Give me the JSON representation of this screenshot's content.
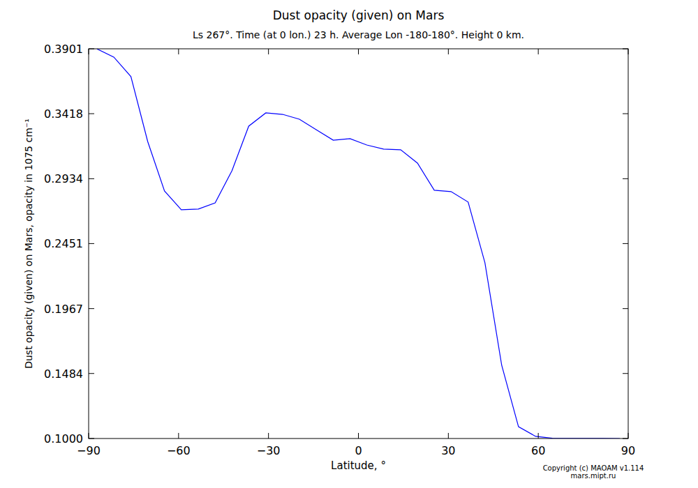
{
  "chart_data": {
    "type": "line",
    "title": "Dust opacity (given) on Mars",
    "subtitle": "Ls 267°. Time (at 0 lon.) 23 h. Average Lon -180-180°. Height 0 km.",
    "x_label": "Latitude, °",
    "y_label": "Dust opacity (given) on Mars, opacity in 1075 cm⁻¹",
    "annotations": [
      "Copyright (c) MAOAM v1.114",
      "mars.mipt.ru"
    ],
    "color": "#0000ff",
    "x": [
      -87.2,
      -81.6,
      -75.9,
      -70.3,
      -64.7,
      -59.1,
      -53.4,
      -47.8,
      -42.2,
      -36.6,
      -30.9,
      -25.3,
      -19.7,
      -14.1,
      -8.4,
      -2.8,
      2.8,
      8.4,
      14.1,
      19.7,
      25.3,
      30.9,
      36.6,
      42.2,
      47.8,
      53.4,
      59.1,
      64.7,
      70.3,
      75.9,
      81.6,
      87.2
    ],
    "values": [
      0.39,
      0.3839,
      0.3694,
      0.3211,
      0.2843,
      0.2703,
      0.2708,
      0.2754,
      0.2993,
      0.3325,
      0.3424,
      0.3413,
      0.3377,
      0.3299,
      0.3221,
      0.3232,
      0.3185,
      0.3154,
      0.3149,
      0.305,
      0.2848,
      0.2838,
      0.276,
      0.2308,
      0.1545,
      0.1088,
      0.1016,
      0.1002,
      0.1001,
      0.1001,
      0.1001,
      0.1
    ],
    "xlim": [
      -90,
      90
    ],
    "ylim": [
      0.1,
      0.3901
    ],
    "xticks": [
      {
        "value": -90,
        "label": "−90"
      },
      {
        "value": -60,
        "label": "−60"
      },
      {
        "value": -30,
        "label": "−30"
      },
      0,
      30,
      60,
      90
    ],
    "yticks": [
      {
        "value": 0.1,
        "label": "0.1000"
      },
      {
        "value": 0.1484,
        "label": "0.1484"
      },
      {
        "value": 0.1967,
        "label": "0.1967"
      },
      {
        "value": 0.2451,
        "label": "0.2451"
      },
      {
        "value": 0.2934,
        "label": "0.2934"
      },
      {
        "value": 0.3418,
        "label": "0.3418"
      },
      {
        "value": 0.3901,
        "label": "0.3901"
      }
    ],
    "grid": false
  }
}
